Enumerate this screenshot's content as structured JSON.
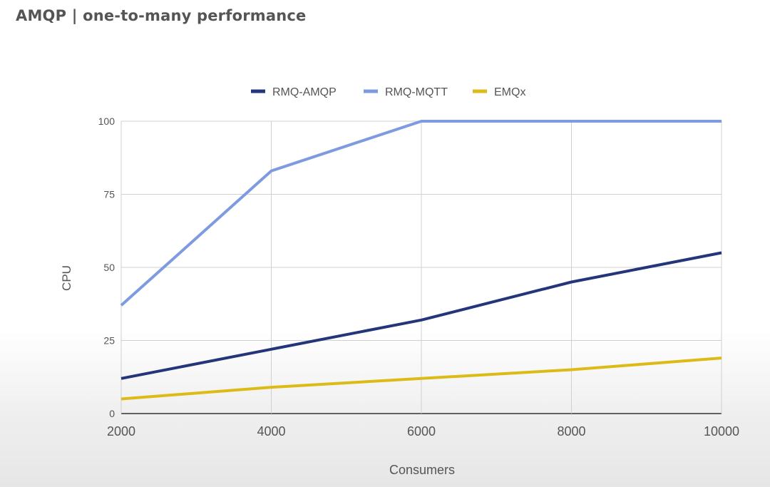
{
  "page_title": "AMQP | one-to-many performance",
  "chart_data": {
    "type": "line",
    "title": "",
    "xlabel": "Consumers",
    "ylabel": "CPU",
    "x": [
      2000,
      4000,
      6000,
      8000,
      10000
    ],
    "xlim": [
      2000,
      10000
    ],
    "ylim": [
      0,
      100
    ],
    "x_ticks": [
      "2000",
      "4000",
      "6000",
      "8000",
      "10000"
    ],
    "y_ticks": [
      "0",
      "25",
      "50",
      "75",
      "100"
    ],
    "grid": true,
    "legend_position": "top",
    "series": [
      {
        "name": "RMQ-AMQP",
        "color": "#25357a",
        "values": [
          12,
          22,
          32,
          45,
          55
        ]
      },
      {
        "name": "RMQ-MQTT",
        "color": "#7e9be0",
        "values": [
          37,
          83,
          100,
          100,
          100
        ]
      },
      {
        "name": "EMQx",
        "color": "#dcbb16",
        "values": [
          5,
          9,
          12,
          15,
          19
        ]
      }
    ]
  }
}
